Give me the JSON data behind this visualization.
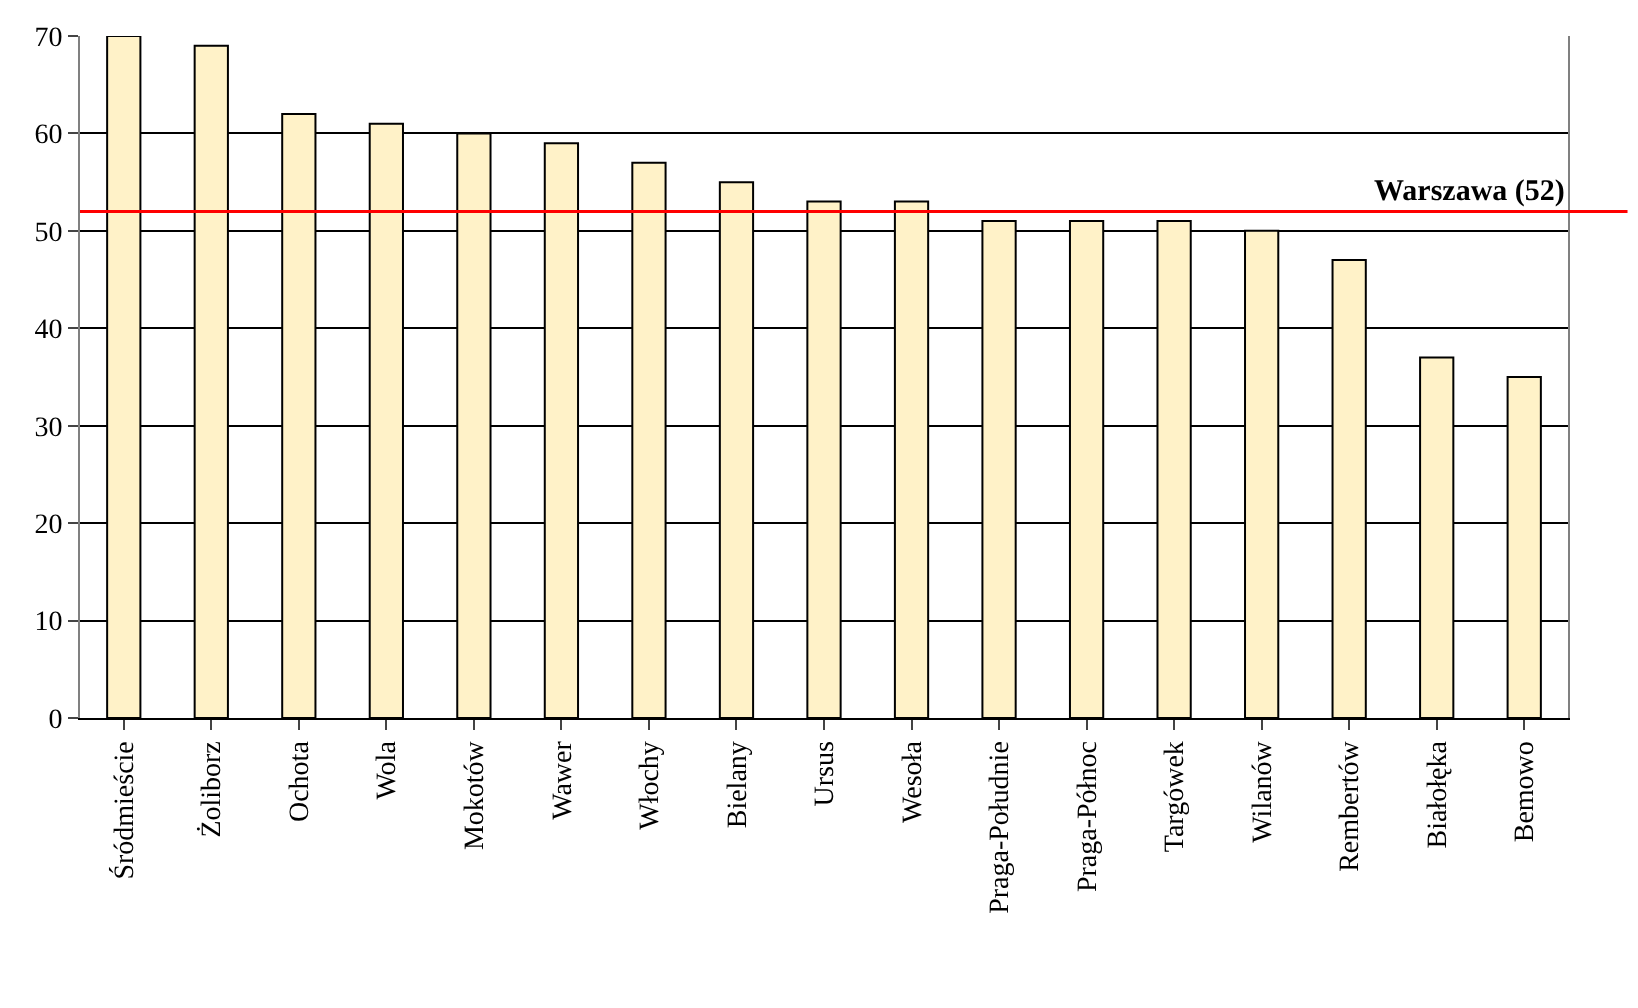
{
  "chart_data": {
    "type": "bar",
    "categories": [
      "Śródmieście",
      "Żoliborz",
      "Ochota",
      "Wola",
      "Mokotów",
      "Wawer",
      "Włochy",
      "Bielany",
      "Ursus",
      "Wesoła",
      "Praga-Południe",
      "Praga-Północ",
      "Targówek",
      "Wilanów",
      "Rembertów",
      "Białołęka",
      "Bemowo"
    ],
    "values": [
      70,
      69,
      62,
      61,
      60,
      59,
      57,
      55,
      53,
      53,
      51,
      51,
      51,
      50,
      47,
      37,
      35
    ],
    "color": "#fff2c8",
    "ylim": [
      0,
      70
    ],
    "yticks": [
      0,
      10,
      20,
      30,
      40,
      50,
      60,
      70
    ],
    "grid": "y",
    "ref_lines": [
      {
        "axis": "y",
        "value": 52,
        "label": "Warszawa (52)",
        "color": "#ff0000"
      }
    ]
  }
}
